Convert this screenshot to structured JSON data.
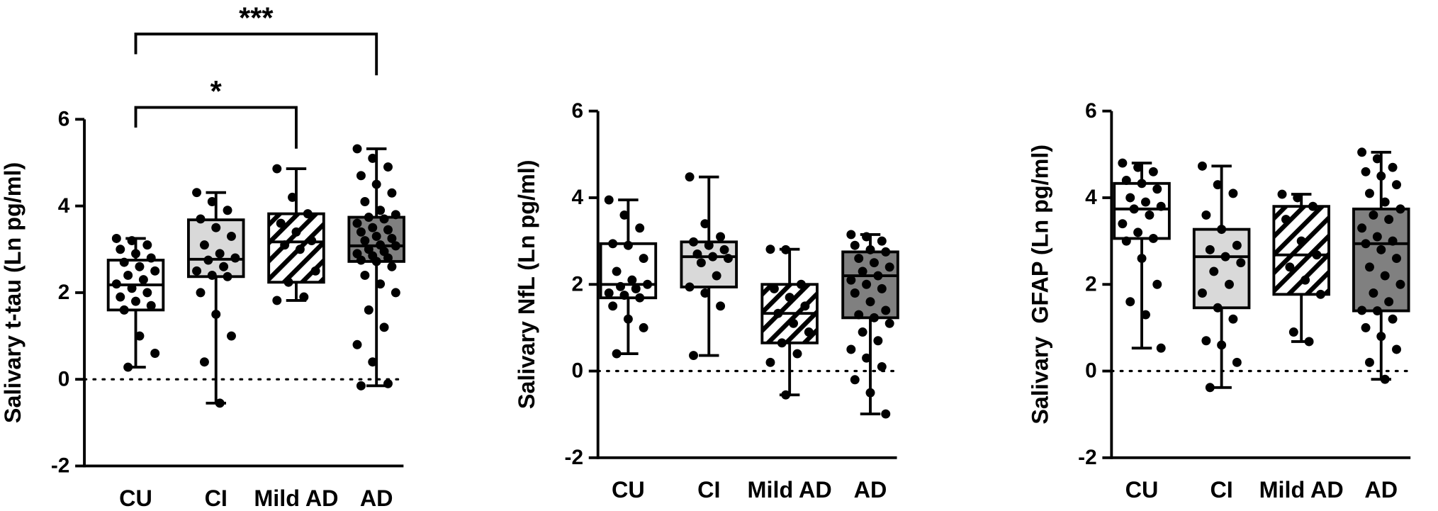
{
  "chart_data": [
    {
      "type": "box",
      "ylabel": "Salivary t-tau (Ln pg/ml)",
      "categories": [
        "CU",
        "CI",
        "Mild AD",
        "AD"
      ],
      "ylim": [
        -2,
        6
      ],
      "yticks": [
        -2,
        0,
        2,
        4,
        6
      ],
      "reference_line": 0,
      "boxes": [
        {
          "min": 0.28,
          "q1": 1.6,
          "median": 2.18,
          "q3": 2.75,
          "max": 3.25,
          "fill": "#ffffff",
          "hatch": false,
          "points": [
            3.25,
            3.2,
            3.1,
            3.0,
            2.9,
            2.8,
            2.7,
            2.6,
            2.5,
            2.4,
            2.3,
            2.2,
            2.1,
            2.0,
            1.9,
            1.8,
            1.7,
            1.6,
            1.0,
            0.6,
            0.28
          ]
        },
        {
          "min": -0.55,
          "q1": 2.37,
          "median": 2.77,
          "q3": 3.68,
          "max": 4.31,
          "fill": "#d9d9d9",
          "hatch": false,
          "points": [
            4.31,
            4.1,
            3.9,
            3.7,
            3.5,
            3.3,
            3.1,
            2.9,
            2.8,
            2.75,
            2.6,
            2.5,
            2.4,
            2.37,
            2.0,
            1.5,
            1.0,
            0.4,
            -0.55
          ]
        },
        {
          "min": 1.82,
          "q1": 2.24,
          "median": 3.17,
          "q3": 3.82,
          "max": 4.86,
          "fill": "#ffffff",
          "hatch": true,
          "points": [
            4.86,
            4.2,
            3.82,
            3.6,
            3.4,
            3.2,
            3.1,
            3.0,
            2.5,
            2.24,
            1.9,
            1.82
          ]
        },
        {
          "min": -0.15,
          "q1": 2.72,
          "median": 3.08,
          "q3": 3.74,
          "max": 5.32,
          "fill": "#808080",
          "hatch": false,
          "points": [
            5.32,
            5.1,
            4.9,
            4.7,
            4.5,
            4.3,
            4.1,
            3.9,
            3.8,
            3.74,
            3.7,
            3.6,
            3.5,
            3.45,
            3.4,
            3.3,
            3.25,
            3.2,
            3.1,
            3.08,
            3.0,
            2.95,
            2.9,
            2.85,
            2.8,
            2.75,
            2.72,
            2.6,
            2.4,
            2.2,
            2.0,
            1.6,
            1.2,
            0.8,
            0.4,
            -0.1,
            -0.15
          ]
        }
      ],
      "annotations": [
        {
          "from": "CU",
          "to": "Mild AD",
          "label": "*"
        },
        {
          "from": "CU",
          "to": "AD",
          "label": "***"
        }
      ]
    },
    {
      "type": "box",
      "ylabel": "Salivary NfL (Ln pg/ml)",
      "categories": [
        "CU",
        "CI",
        "Mild AD",
        "AD"
      ],
      "ylim": [
        -2,
        6
      ],
      "yticks": [
        -2,
        0,
        2,
        4,
        6
      ],
      "reference_line": 0,
      "boxes": [
        {
          "min": 0.4,
          "q1": 1.69,
          "median": 2.0,
          "q3": 2.94,
          "max": 3.95,
          "fill": "#ffffff",
          "hatch": false,
          "points": [
            3.95,
            3.6,
            3.3,
            2.94,
            2.9,
            2.6,
            2.3,
            2.1,
            2.0,
            1.95,
            1.9,
            1.8,
            1.75,
            1.69,
            1.5,
            1.2,
            1.0,
            0.4
          ]
        },
        {
          "min": 0.36,
          "q1": 1.94,
          "median": 2.64,
          "q3": 2.98,
          "max": 4.48,
          "fill": "#d9d9d9",
          "hatch": false,
          "points": [
            4.48,
            3.4,
            3.1,
            2.98,
            2.9,
            2.8,
            2.7,
            2.64,
            2.6,
            2.5,
            2.2,
            1.94,
            1.8,
            1.5,
            0.36
          ]
        },
        {
          "min": -0.55,
          "q1": 0.65,
          "median": 1.33,
          "q3": 2.0,
          "max": 2.81,
          "fill": "#ffffff",
          "hatch": true,
          "points": [
            2.81,
            2.8,
            2.0,
            1.9,
            1.7,
            1.5,
            1.33,
            1.1,
            0.9,
            0.65,
            0.4,
            0.2,
            -0.55
          ]
        },
        {
          "min": -0.99,
          "q1": 1.23,
          "median": 2.2,
          "q3": 2.75,
          "max": 3.15,
          "fill": "#808080",
          "hatch": false,
          "points": [
            3.15,
            3.1,
            3.0,
            2.9,
            2.8,
            2.75,
            2.6,
            2.5,
            2.4,
            2.3,
            2.2,
            2.1,
            2.0,
            1.9,
            1.8,
            1.6,
            1.4,
            1.3,
            1.23,
            1.1,
            0.9,
            0.7,
            0.5,
            0.3,
            0.1,
            -0.2,
            -0.5,
            -0.99
          ]
        }
      ]
    },
    {
      "type": "box",
      "ylabel": "Salivary  GFAP (Ln pg/ml)",
      "categories": [
        "CU",
        "CI",
        "Mild AD",
        "AD"
      ],
      "ylim": [
        -2,
        6
      ],
      "yticks": [
        -2,
        0,
        2,
        4,
        6
      ],
      "reference_line": 0,
      "boxes": [
        {
          "min": 0.53,
          "q1": 3.06,
          "median": 3.74,
          "q3": 4.33,
          "max": 4.8,
          "fill": "#ffffff",
          "hatch": false,
          "points": [
            4.8,
            4.7,
            4.6,
            4.4,
            4.33,
            4.2,
            4.0,
            3.9,
            3.8,
            3.74,
            3.6,
            3.4,
            3.2,
            3.06,
            3.0,
            2.6,
            2.0,
            1.6,
            1.3,
            0.53
          ]
        },
        {
          "min": -0.38,
          "q1": 1.46,
          "median": 2.64,
          "q3": 3.27,
          "max": 4.73,
          "fill": "#d9d9d9",
          "hatch": false,
          "points": [
            4.73,
            4.3,
            4.1,
            3.6,
            3.27,
            2.9,
            2.8,
            2.64,
            2.5,
            2.3,
            2.0,
            1.8,
            1.46,
            1.2,
            0.7,
            0.6,
            0.2,
            -0.38
          ]
        },
        {
          "min": 0.68,
          "q1": 1.77,
          "median": 2.68,
          "q3": 3.8,
          "max": 4.08,
          "fill": "#ffffff",
          "hatch": true,
          "points": [
            4.08,
            4.0,
            3.8,
            3.5,
            3.0,
            2.68,
            2.4,
            2.1,
            1.77,
            0.9,
            0.68
          ]
        },
        {
          "min": -0.19,
          "q1": 1.39,
          "median": 2.94,
          "q3": 3.74,
          "max": 5.05,
          "fill": "#808080",
          "hatch": false,
          "points": [
            5.05,
            4.9,
            4.7,
            4.6,
            4.5,
            4.3,
            4.1,
            3.9,
            3.74,
            3.6,
            3.5,
            3.3,
            3.1,
            3.0,
            2.94,
            2.8,
            2.6,
            2.4,
            2.2,
            2.0,
            1.8,
            1.6,
            1.4,
            1.39,
            1.2,
            1.0,
            0.8,
            0.5,
            0.2,
            -0.19
          ]
        }
      ]
    }
  ]
}
